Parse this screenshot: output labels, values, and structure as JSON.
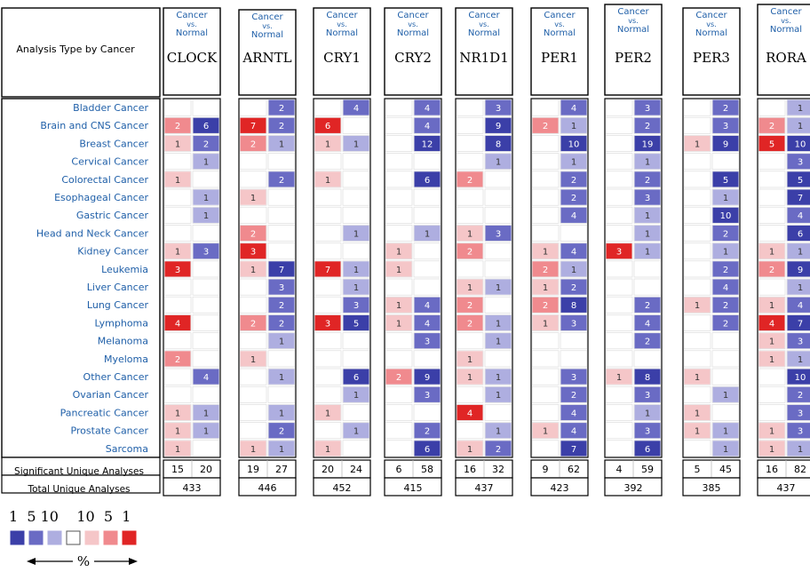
{
  "header": {
    "analysis_type_label": "Analysis Type by Cancer",
    "comparison": [
      "Cancer",
      "vs.",
      "Normal"
    ]
  },
  "summary_labels": {
    "significant": "Significant Unique Analyses",
    "total": "Total Unique Analyses"
  },
  "legend": {
    "scale_labels": "1  5 10    10  5  1",
    "percent_label": "%",
    "blue_colors": [
      "#3b3fa8",
      "#6a6bc4",
      "#aeaee0"
    ],
    "red_colors": [
      "#f5c6c8",
      "#f08a8e",
      "#e02525"
    ]
  },
  "colors": {
    "up_strong": "#e02525",
    "up_medium": "#f08a8e",
    "up_weak": "#f5c6c8",
    "down_strong": "#3b3fa8",
    "down_medium": "#6a6bc4",
    "down_weak": "#aeaee0",
    "cancer_label": "#1f5fa8"
  },
  "chart_data": {
    "type": "heatmap",
    "cancers": [
      "Bladder Cancer",
      "Brain and CNS Cancer",
      "Breast Cancer",
      "Cervical Cancer",
      "Colorectal Cancer",
      "Esophageal Cancer",
      "Gastric Cancer",
      "Head and Neck Cancer",
      "Kidney Cancer",
      "Leukemia",
      "Liver Cancer",
      "Lung Cancer",
      "Lymphoma",
      "Melanoma",
      "Myeloma",
      "Other Cancer",
      "Ovarian Cancer",
      "Pancreatic Cancer",
      "Prostate Cancer",
      "Sarcoma"
    ],
    "genes": [
      {
        "name": "CLOCK",
        "up": [
          null,
          2,
          1,
          null,
          1,
          null,
          null,
          null,
          1,
          3,
          null,
          null,
          4,
          null,
          2,
          null,
          null,
          1,
          1,
          1
        ],
        "down": [
          null,
          6,
          2,
          1,
          null,
          1,
          1,
          null,
          3,
          null,
          null,
          null,
          null,
          null,
          null,
          4,
          null,
          1,
          1,
          null
        ],
        "significant": [
          15,
          20
        ],
        "total": 433
      },
      {
        "name": "ARNTL",
        "up": [
          null,
          7,
          2,
          null,
          null,
          1,
          null,
          2,
          3,
          1,
          null,
          null,
          2,
          null,
          1,
          null,
          null,
          null,
          null,
          1
        ],
        "down": [
          2,
          2,
          1,
          null,
          2,
          null,
          null,
          null,
          null,
          7,
          3,
          2,
          2,
          1,
          null,
          1,
          null,
          1,
          2,
          1
        ],
        "significant": [
          19,
          27
        ],
        "total": 446
      },
      {
        "name": "CRY1",
        "up": [
          null,
          6,
          1,
          null,
          1,
          null,
          null,
          null,
          null,
          7,
          null,
          null,
          3,
          null,
          null,
          null,
          null,
          1,
          null,
          1
        ],
        "down": [
          4,
          null,
          1,
          null,
          null,
          null,
          null,
          1,
          null,
          1,
          1,
          3,
          5,
          null,
          null,
          6,
          1,
          null,
          1,
          null
        ],
        "significant": [
          20,
          24
        ],
        "total": 452
      },
      {
        "name": "CRY2",
        "up": [
          null,
          null,
          null,
          null,
          null,
          null,
          null,
          null,
          1,
          1,
          null,
          1,
          1,
          null,
          null,
          2,
          null,
          null,
          null,
          null
        ],
        "down": [
          4,
          4,
          12,
          null,
          6,
          null,
          null,
          1,
          null,
          null,
          null,
          4,
          4,
          3,
          null,
          9,
          3,
          null,
          2,
          6
        ],
        "significant": [
          6,
          58
        ],
        "total": 415
      },
      {
        "name": "NR1D1",
        "up": [
          null,
          null,
          null,
          null,
          2,
          null,
          null,
          1,
          2,
          null,
          1,
          2,
          2,
          null,
          1,
          1,
          null,
          4,
          null,
          1
        ],
        "down": [
          3,
          9,
          8,
          1,
          null,
          null,
          null,
          3,
          null,
          null,
          1,
          null,
          1,
          1,
          null,
          1,
          1,
          null,
          1,
          2
        ],
        "significant": [
          16,
          32
        ],
        "total": 437
      },
      {
        "name": "PER1",
        "up": [
          null,
          2,
          null,
          null,
          null,
          null,
          null,
          null,
          1,
          2,
          1,
          2,
          1,
          null,
          null,
          null,
          null,
          null,
          1,
          null
        ],
        "down": [
          4,
          1,
          10,
          1,
          2,
          2,
          4,
          null,
          4,
          1,
          2,
          8,
          3,
          null,
          null,
          3,
          2,
          4,
          4,
          7
        ],
        "significant": [
          9,
          62
        ],
        "total": 423
      },
      {
        "name": "PER2",
        "up": [
          null,
          null,
          null,
          null,
          null,
          null,
          null,
          null,
          3,
          null,
          null,
          null,
          null,
          null,
          null,
          1,
          null,
          null,
          null,
          null
        ],
        "down": [
          3,
          2,
          19,
          1,
          2,
          3,
          1,
          1,
          1,
          null,
          null,
          2,
          4,
          2,
          null,
          8,
          3,
          1,
          3,
          6
        ],
        "significant": [
          4,
          59
        ],
        "total": 392
      },
      {
        "name": "PER3",
        "up": [
          null,
          null,
          1,
          null,
          null,
          null,
          null,
          null,
          null,
          null,
          null,
          1,
          null,
          null,
          null,
          1,
          null,
          1,
          1,
          null
        ],
        "down": [
          2,
          3,
          9,
          null,
          5,
          1,
          10,
          2,
          1,
          2,
          4,
          2,
          2,
          null,
          null,
          null,
          1,
          null,
          1,
          1
        ],
        "significant": [
          5,
          45
        ],
        "total": 385
      },
      {
        "name": "RORA",
        "up": [
          null,
          2,
          5,
          null,
          null,
          null,
          null,
          null,
          1,
          2,
          null,
          1,
          4,
          1,
          1,
          null,
          null,
          null,
          1,
          1
        ],
        "down": [
          1,
          1,
          10,
          3,
          5,
          7,
          4,
          6,
          1,
          9,
          1,
          4,
          7,
          3,
          1,
          10,
          2,
          3,
          3,
          1
        ],
        "significant": [
          16,
          82
        ],
        "total": 437
      }
    ]
  }
}
